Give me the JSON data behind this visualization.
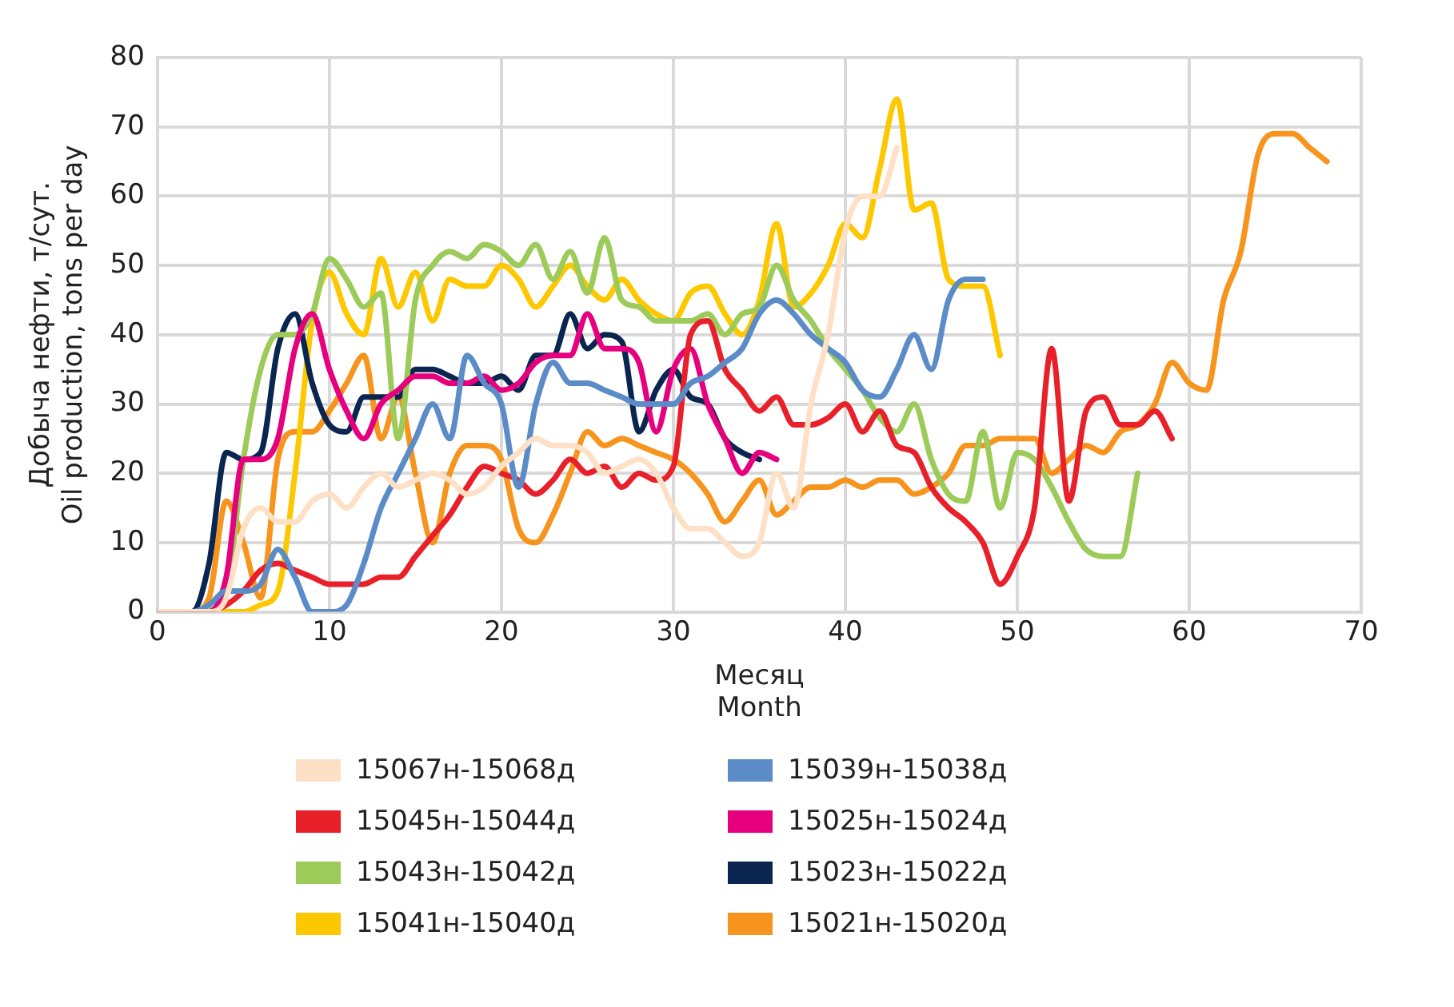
{
  "chart_data": {
    "type": "line",
    "xlabel": "Месяц\nMonth",
    "ylabel": "Добыча нефти, т/сут.\nOil production, tons per day",
    "x": [
      0,
      1,
      2,
      3,
      4,
      5,
      6,
      7,
      8,
      9,
      10,
      11,
      12,
      13,
      14,
      15,
      16,
      17,
      18,
      19,
      20,
      21,
      22,
      23,
      24,
      25,
      26,
      27,
      28,
      29,
      30,
      31,
      32,
      33,
      34,
      35,
      36,
      37,
      38,
      39,
      40,
      41,
      42,
      43,
      44,
      45,
      46,
      47,
      48,
      49,
      50,
      51,
      52,
      53,
      54,
      55,
      56,
      57,
      58,
      59,
      60,
      61,
      62,
      63,
      64,
      65,
      66,
      67,
      68
    ],
    "xlim": [
      0,
      70
    ],
    "xticks": [
      0,
      10,
      20,
      30,
      40,
      50,
      60,
      70
    ],
    "ylim": [
      0,
      80
    ],
    "yticks": [
      0,
      10,
      20,
      30,
      40,
      50,
      60,
      70,
      80
    ],
    "grid": true,
    "legend": "bottom",
    "marker": "none",
    "line_style": "solid",
    "series": [
      {
        "name": "15067н-15068д",
        "color": "#fde0c5",
        "values": [
          0,
          0,
          0,
          0,
          2,
          12,
          15,
          13,
          13,
          16,
          17,
          15,
          18,
          20,
          18,
          19,
          20,
          19,
          17,
          18,
          21,
          23,
          25,
          24,
          24,
          23,
          20,
          21,
          22,
          20,
          15,
          12,
          12,
          10,
          8,
          10,
          20,
          15,
          30,
          40,
          55,
          60,
          60,
          67,
          null,
          null,
          null,
          null,
          null,
          null,
          null,
          null,
          null,
          null,
          null,
          null,
          null,
          null,
          null,
          null,
          null,
          null,
          null,
          null,
          null,
          null,
          null,
          null,
          null
        ]
      },
      {
        "name": "15039н-15038д",
        "color": "#5b8cc8",
        "values": [
          0,
          0,
          0,
          1,
          3,
          3,
          4,
          9,
          5,
          0,
          0,
          1,
          7,
          15,
          20,
          25,
          30,
          25,
          37,
          33,
          30,
          18,
          30,
          36,
          33,
          33,
          32,
          31,
          30,
          30,
          30,
          33,
          34,
          36,
          38,
          43,
          45,
          43,
          40,
          38,
          36,
          32,
          31,
          35,
          40,
          35,
          45,
          48,
          48,
          null,
          null,
          null,
          null,
          null,
          null,
          null,
          null,
          null,
          null,
          null,
          null,
          null,
          null,
          null,
          null,
          null,
          null,
          null,
          null
        ]
      },
      {
        "name": "15045н-15044д",
        "color": "#e8202a",
        "values": [
          0,
          0,
          0,
          0,
          1,
          3,
          6,
          7,
          6,
          5,
          4,
          4,
          4,
          5,
          5,
          8,
          11,
          14,
          18,
          21,
          20,
          19,
          17,
          19,
          22,
          20,
          21,
          18,
          20,
          19,
          21,
          40,
          42,
          35,
          32,
          29,
          31,
          27,
          27,
          28,
          30,
          26,
          29,
          24,
          23,
          18,
          15,
          13,
          10,
          4,
          8,
          15,
          38,
          16,
          29,
          31,
          27,
          27,
          29,
          25,
          null,
          null,
          null,
          null,
          null,
          null,
          null,
          null,
          null
        ]
      },
      {
        "name": "15025н-15024д",
        "color": "#e6007e",
        "values": [
          null,
          null,
          0,
          0,
          5,
          22,
          22,
          25,
          38,
          43,
          35,
          29,
          25,
          30,
          32,
          34,
          34,
          33,
          33,
          34,
          32,
          33,
          36,
          37,
          37,
          43,
          38,
          38,
          36,
          26,
          35,
          38,
          30,
          25,
          20,
          23,
          22,
          null,
          null,
          null,
          null,
          null,
          null,
          null,
          null,
          null,
          null,
          null,
          null,
          null,
          null,
          null,
          null,
          null,
          null,
          null,
          null,
          null,
          null,
          null,
          null,
          null,
          null,
          null,
          null,
          null,
          null,
          null,
          null
        ]
      },
      {
        "name": "15043н-15042д",
        "color": "#9ccb5a",
        "values": [
          null,
          null,
          null,
          0,
          3,
          22,
          35,
          40,
          40,
          43,
          51,
          48,
          44,
          46,
          25,
          45,
          50,
          52,
          51,
          53,
          52,
          50,
          53,
          48,
          52,
          46,
          54,
          45,
          44,
          42,
          42,
          42,
          43,
          40,
          43,
          44,
          50,
          45,
          42,
          38,
          35,
          32,
          28,
          26,
          30,
          22,
          17,
          16,
          26,
          15,
          23,
          22,
          18,
          13,
          9,
          8,
          8,
          20,
          null,
          null,
          null,
          null,
          null,
          null,
          null,
          null,
          null,
          null,
          null
        ]
      },
      {
        "name": "15023н-15022д",
        "color": "#0a2650",
        "values": [
          0,
          0,
          0,
          7,
          23,
          22,
          23,
          38,
          43,
          33,
          27,
          26,
          31,
          31,
          31,
          35,
          35,
          34,
          33,
          33,
          34,
          32,
          37,
          37,
          43,
          38,
          40,
          39,
          26,
          32,
          35,
          31,
          30,
          25,
          23,
          22,
          null,
          null,
          null,
          null,
          null,
          null,
          null,
          null,
          null,
          null,
          null,
          null,
          null,
          null,
          null,
          null,
          null,
          null,
          null,
          null,
          null,
          null,
          null,
          null,
          null,
          null,
          null,
          null,
          null,
          null,
          null,
          null,
          null
        ]
      },
      {
        "name": "15041н-15040д",
        "color": "#fdc800",
        "values": [
          null,
          null,
          0,
          0,
          0,
          0,
          1,
          3,
          20,
          42,
          49,
          43,
          40,
          51,
          44,
          49,
          42,
          48,
          47,
          47,
          50,
          48,
          44,
          47,
          50,
          47,
          45,
          48,
          45,
          43,
          42,
          46,
          47,
          43,
          40,
          45,
          56,
          44,
          46,
          50,
          56,
          54,
          64,
          74,
          58,
          59,
          48,
          47,
          47,
          37,
          null,
          null,
          null,
          null,
          null,
          null,
          null,
          null,
          null,
          null,
          null,
          null,
          null,
          null,
          null,
          null,
          null,
          null,
          null
        ]
      },
      {
        "name": "15021н-15020д",
        "color": "#f7941d",
        "values": [
          0,
          0,
          0,
          2,
          16,
          10,
          2,
          22,
          26,
          26,
          29,
          33,
          37,
          25,
          31,
          20,
          10,
          20,
          24,
          24,
          22,
          12,
          10,
          14,
          20,
          26,
          24,
          25,
          24,
          23,
          22,
          20,
          17,
          13,
          16,
          19,
          14,
          16,
          18,
          18,
          19,
          18,
          19,
          19,
          17,
          18,
          20,
          24,
          24,
          25,
          25,
          25,
          20,
          22,
          24,
          23,
          26,
          27,
          30,
          36,
          33,
          32,
          45,
          52,
          66,
          69,
          69,
          67,
          65
        ]
      }
    ]
  }
}
